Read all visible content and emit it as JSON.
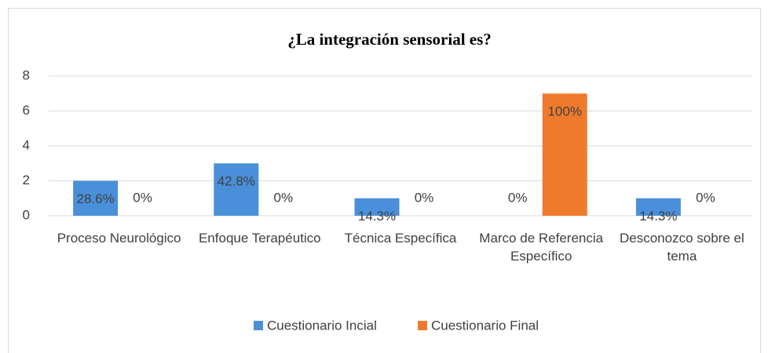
{
  "chart_data": {
    "type": "bar",
    "title": "¿La integración sensorial es?",
    "categories": [
      "Proceso Neurológico",
      "Enfoque Terapéutico",
      "Técnica Específica",
      "Marco de Referencia Específico",
      "Desconozco sobre el tema"
    ],
    "series": [
      {
        "name": "Cuestionario Incial",
        "color": "#4a8fd9",
        "values": [
          2,
          3,
          1,
          0,
          1
        ],
        "value_labels": [
          "28.6%",
          "42.8%",
          "14.3%",
          "0%",
          "14.3%"
        ]
      },
      {
        "name": "Cuestionario Final",
        "color": "#ef7a2c",
        "values": [
          0,
          0,
          0,
          7,
          0
        ],
        "value_labels": [
          "0%",
          "0%",
          "0%",
          "100%",
          "0%"
        ]
      }
    ],
    "ylim": [
      0,
      8
    ],
    "yticks": [
      0,
      2,
      4,
      6,
      8
    ],
    "grid": true,
    "legend": "bottom"
  }
}
